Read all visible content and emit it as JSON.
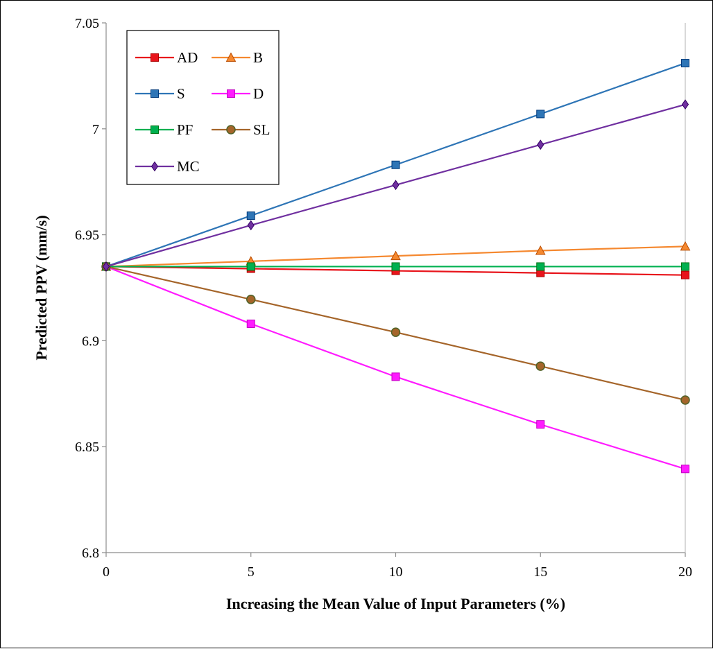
{
  "chart_data": {
    "type": "line",
    "title": "",
    "xlabel": "Increasing the Mean Value of Input Parameters (%)",
    "ylabel": "Predicted PPV (mm/s)",
    "x": [
      0,
      5,
      10,
      15,
      20
    ],
    "xlim": [
      0,
      20
    ],
    "ylim": [
      6.8,
      7.05
    ],
    "x_ticks": [
      0,
      5,
      10,
      15,
      20
    ],
    "y_ticks": [
      6.8,
      6.85,
      6.9,
      6.95,
      7,
      7.05
    ],
    "y_tick_labels": [
      "6.8",
      "6.85",
      "6.9",
      "6.95",
      "7",
      "7.05"
    ],
    "grid": false,
    "legend_position": "top-left",
    "series": [
      {
        "name": "AD",
        "color": "#e8141b",
        "marker": "square",
        "values": [
          6.935,
          6.934,
          6.933,
          6.932,
          6.931
        ]
      },
      {
        "name": "B",
        "color": "#f5882f",
        "marker": "triangle",
        "values": [
          6.935,
          6.9375,
          6.94,
          6.9425,
          6.9445
        ]
      },
      {
        "name": "S",
        "color": "#2e75b6",
        "marker": "square",
        "values": [
          6.935,
          6.959,
          6.983,
          7.007,
          7.031
        ]
      },
      {
        "name": "D",
        "color": "#ff1bff",
        "marker": "square",
        "values": [
          6.935,
          6.908,
          6.883,
          6.8605,
          6.8395
        ]
      },
      {
        "name": "PF",
        "color": "#00b050",
        "marker": "square",
        "values": [
          6.935,
          6.935,
          6.935,
          6.935,
          6.935
        ]
      },
      {
        "name": "SL",
        "color": "#a5652a",
        "marker": "circle",
        "values": [
          6.935,
          6.9195,
          6.904,
          6.888,
          6.872
        ]
      },
      {
        "name": "MC",
        "color": "#7030a0",
        "marker": "diamond",
        "values": [
          6.935,
          6.9545,
          6.9735,
          6.9925,
          7.0115
        ]
      }
    ]
  }
}
